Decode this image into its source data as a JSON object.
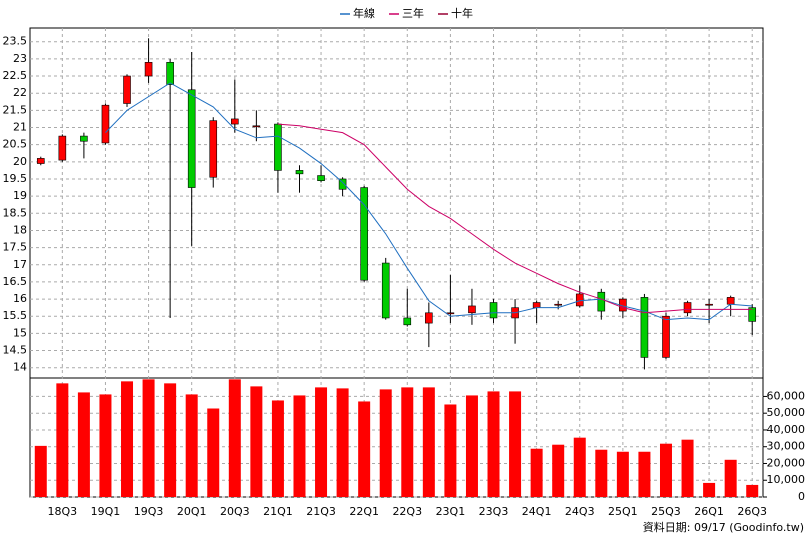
{
  "chart_data": [
    {
      "type": "candlestick",
      "categories": [
        null,
        "18Q3",
        null,
        "19Q1",
        null,
        "19Q3",
        null,
        "20Q1",
        null,
        "20Q3",
        null,
        "21Q1",
        null,
        "21Q3",
        null,
        "22Q1",
        null,
        "22Q3",
        null,
        "23Q1",
        null,
        "23Q3",
        null,
        "24Q1",
        null,
        "24Q3",
        null,
        "25Q1",
        null,
        "25Q3",
        null,
        "26Q1",
        null,
        "26Q3"
      ],
      "open": [
        19.95,
        20.05,
        20.75,
        20.55,
        21.7,
        22.5,
        22.9,
        22.1,
        19.55,
        21.1,
        21.05,
        21.1,
        19.75,
        19.6,
        19.5,
        19.25,
        17.05,
        15.45,
        15.3,
        15.6,
        15.6,
        15.9,
        15.45,
        15.75,
        15.85,
        15.8,
        16.2,
        15.65,
        16.05,
        14.3,
        15.6,
        15.85,
        15.85,
        15.75
      ],
      "high": [
        20.15,
        20.8,
        20.85,
        21.7,
        22.55,
        23.6,
        23.0,
        23.2,
        21.3,
        22.4,
        21.5,
        21.15,
        19.9,
        19.9,
        19.55,
        19.3,
        17.2,
        16.3,
        15.9,
        16.7,
        16.3,
        16.0,
        16.0,
        15.95,
        15.95,
        16.4,
        16.3,
        16.05,
        16.15,
        15.6,
        15.95,
        16.0,
        16.1,
        15.85
      ],
      "low": [
        19.9,
        20.0,
        20.1,
        20.5,
        21.6,
        22.3,
        15.45,
        17.55,
        19.25,
        20.85,
        20.6,
        19.1,
        19.1,
        19.4,
        19.0,
        16.5,
        15.4,
        15.2,
        14.6,
        15.3,
        15.25,
        15.3,
        14.7,
        15.3,
        15.7,
        15.75,
        15.4,
        15.45,
        13.95,
        14.25,
        15.5,
        15.3,
        15.5,
        14.95
      ],
      "close": [
        20.1,
        20.75,
        20.6,
        21.65,
        22.5,
        22.9,
        22.25,
        19.25,
        21.2,
        21.25,
        21.05,
        19.75,
        19.65,
        19.45,
        19.2,
        16.55,
        15.45,
        15.25,
        15.6,
        15.6,
        15.8,
        15.45,
        15.75,
        15.9,
        15.85,
        16.15,
        15.65,
        16.0,
        14.3,
        15.5,
        15.9,
        15.85,
        16.05,
        15.35
      ],
      "up_color": "#ff0000",
      "down_color": "#00cc00",
      "series": [
        {
          "name": "年線",
          "color": "#1f6fc0",
          "values": [
            null,
            null,
            null,
            20.85,
            21.5,
            21.9,
            22.3,
            21.95,
            21.6,
            20.95,
            20.7,
            20.75,
            20.4,
            19.95,
            19.4,
            18.75,
            17.9,
            16.9,
            15.95,
            15.5,
            15.55,
            15.6,
            15.6,
            15.75,
            15.75,
            15.95,
            16.0,
            15.8,
            15.65,
            15.4,
            15.45,
            15.4,
            15.85,
            15.8
          ]
        },
        {
          "name": "三年",
          "color": "#cc0066",
          "values": [
            null,
            null,
            null,
            null,
            null,
            null,
            null,
            null,
            null,
            null,
            null,
            21.1,
            21.05,
            20.95,
            20.85,
            20.5,
            19.85,
            19.2,
            18.7,
            18.35,
            17.9,
            17.45,
            17.05,
            16.75,
            16.45,
            16.2,
            16.0,
            15.75,
            15.6,
            15.65,
            15.7,
            15.7,
            15.7,
            15.7
          ]
        },
        {
          "name": "十年",
          "color": "#990033",
          "values": [
            null,
            null,
            null,
            null,
            null,
            null,
            null,
            null,
            null,
            null,
            null,
            null,
            null,
            null,
            null,
            null,
            null,
            null,
            null,
            null,
            null,
            null,
            null,
            null,
            null,
            null,
            null,
            null,
            null,
            null,
            null,
            null,
            null,
            null
          ]
        }
      ],
      "ylim": [
        13.7,
        23.9
      ],
      "yticks": [
        14,
        14.5,
        15,
        15.5,
        16,
        16.5,
        17,
        17.5,
        18,
        18.5,
        19,
        19.5,
        20,
        20.5,
        21,
        21.5,
        22,
        22.5,
        23,
        23.5
      ],
      "grid": true,
      "legend": "top"
    },
    {
      "type": "bar",
      "color": "#ff0000",
      "values": [
        30500,
        67800,
        62400,
        61200,
        69000,
        70200,
        67800,
        61200,
        52800,
        70200,
        66000,
        57600,
        60600,
        65400,
        64800,
        57000,
        64200,
        65400,
        65400,
        55200,
        60600,
        63000,
        63000,
        28800,
        31200,
        35400,
        28200,
        27000,
        27000,
        31800,
        34200,
        8400,
        22200,
        7200
      ],
      "ylim": [
        0,
        71000
      ],
      "yticks": [
        0,
        {
          "value": 10000,
          "label": "10,000"
        },
        {
          "value": 20000,
          "label": "20,000"
        },
        {
          "value": 30000,
          "label": "30,000"
        },
        {
          "value": 40000,
          "label": "40,000"
        },
        {
          "value": 50000,
          "label": "50,000"
        },
        {
          "value": 60000,
          "label": "60,000"
        }
      ],
      "grid": true
    }
  ],
  "footer": "資料日期: 09/17  (Goodinfo.tw)"
}
